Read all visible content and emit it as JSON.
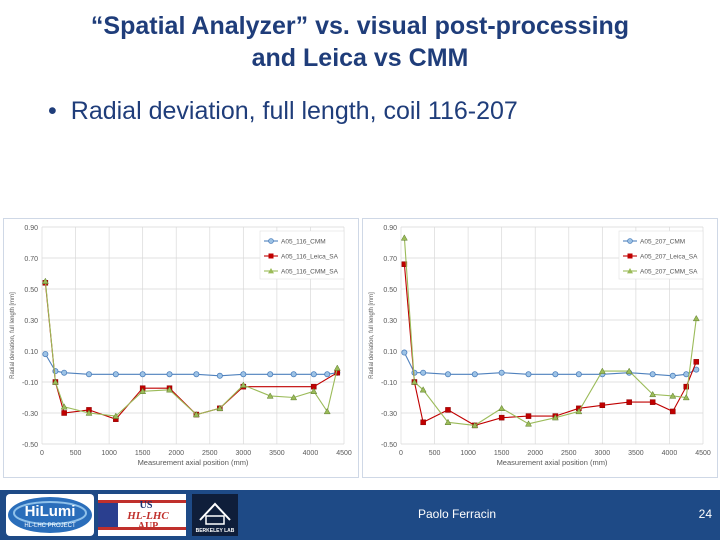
{
  "slide": {
    "title_line1": "“Spatial Analyzer” vs. visual post-processing",
    "title_line2": "and Leica vs CMM",
    "bullet": "Radial deviation, full length, coil 116-207",
    "presenter": "Paolo Ferracin",
    "page_number": "24"
  },
  "logos": {
    "hilumi_main": "HiLumi",
    "hilumi_sub": "HL-LHC PROJECT",
    "us_line1": "US",
    "us_line2": "HL-LHC",
    "us_line3": "AUP",
    "berkeley": "BERKELEY LAB"
  },
  "colors": {
    "cmm": "#4f81bd",
    "leica": "#c00000",
    "cmm_sa": "#9bbb59",
    "theme": "#1e4a86"
  },
  "chart_data": [
    {
      "type": "line",
      "xlabel": "Measurement axial position (mm)",
      "ylabel": "Radial deviation, full length [mm]",
      "ylim": [
        -0.5,
        0.9
      ],
      "xlim": [
        0,
        4500
      ],
      "yticks": [
        "0.90",
        "0.70",
        "0.50",
        "0.30",
        "0.10",
        "-0.10",
        "-0.30",
        "-0.50"
      ],
      "xticks": [
        "0",
        "500",
        "1000",
        "1500",
        "2000",
        "2500",
        "3000",
        "3500",
        "4000",
        "4500"
      ],
      "legend_position": "top-right",
      "series": [
        {
          "name": "A05_116_CMM",
          "color": "#4f81bd",
          "marker": "circle",
          "x": [
            50,
            200,
            330,
            700,
            1100,
            1500,
            1900,
            2300,
            2650,
            3000,
            3400,
            3750,
            4050,
            4250,
            4400
          ],
          "y": [
            0.08,
            -0.03,
            -0.04,
            -0.05,
            -0.05,
            -0.05,
            -0.05,
            -0.05,
            -0.06,
            -0.05,
            -0.05,
            -0.05,
            -0.05,
            -0.05,
            -0.04
          ]
        },
        {
          "name": "A05_116_Leica_SA",
          "color": "#c00000",
          "marker": "square",
          "x": [
            50,
            200,
            330,
            700,
            1100,
            1500,
            1900,
            2300,
            2650,
            3000,
            4050,
            4400
          ],
          "y": [
            0.54,
            -0.1,
            -0.3,
            -0.28,
            -0.34,
            -0.14,
            -0.14,
            -0.31,
            -0.27,
            -0.13,
            -0.13,
            -0.04
          ]
        },
        {
          "name": "A05_116_CMM_SA",
          "color": "#9bbb59",
          "marker": "triangle",
          "x": [
            50,
            200,
            330,
            700,
            1100,
            1500,
            1900,
            2300,
            2650,
            3000,
            3400,
            3750,
            4050,
            4250,
            4400
          ],
          "y": [
            0.55,
            -0.1,
            -0.26,
            -0.3,
            -0.32,
            -0.16,
            -0.15,
            -0.31,
            -0.27,
            -0.12,
            -0.19,
            -0.2,
            -0.16,
            -0.29,
            -0.01
          ]
        }
      ]
    },
    {
      "type": "line",
      "xlabel": "Measurement axial position (mm)",
      "ylabel": "Radial deviation, full length [mm]",
      "ylim": [
        -0.5,
        0.9
      ],
      "xlim": [
        0,
        4500
      ],
      "yticks": [
        "0.90",
        "0.70",
        "0.50",
        "0.30",
        "0.10",
        "-0.10",
        "-0.30",
        "-0.50"
      ],
      "xticks": [
        "0",
        "500",
        "1000",
        "1500",
        "2000",
        "2500",
        "3000",
        "3500",
        "4000",
        "4500"
      ],
      "legend_position": "top-right",
      "series": [
        {
          "name": "A05_207_CMM",
          "color": "#4f81bd",
          "marker": "circle",
          "x": [
            50,
            200,
            330,
            700,
            1100,
            1500,
            1900,
            2300,
            2650,
            3000,
            3400,
            3750,
            4050,
            4250,
            4400
          ],
          "y": [
            0.09,
            -0.04,
            -0.04,
            -0.05,
            -0.05,
            -0.04,
            -0.05,
            -0.05,
            -0.05,
            -0.05,
            -0.04,
            -0.05,
            -0.06,
            -0.05,
            -0.02
          ]
        },
        {
          "name": "A05_207_Leica_SA",
          "color": "#c00000",
          "marker": "square",
          "x": [
            50,
            200,
            330,
            700,
            1100,
            1500,
            1900,
            2300,
            2650,
            3000,
            3400,
            3750,
            4050,
            4250,
            4400
          ],
          "y": [
            0.66,
            -0.1,
            -0.36,
            -0.28,
            -0.38,
            -0.33,
            -0.32,
            -0.32,
            -0.27,
            -0.25,
            -0.23,
            -0.23,
            -0.29,
            -0.13,
            0.03
          ]
        },
        {
          "name": "A05_207_CMM_SA",
          "color": "#9bbb59",
          "marker": "triangle",
          "x": [
            50,
            200,
            330,
            700,
            1100,
            1500,
            1900,
            2300,
            2650,
            3000,
            3400,
            3750,
            4050,
            4250,
            4400
          ],
          "y": [
            0.83,
            -0.1,
            -0.15,
            -0.36,
            -0.38,
            -0.27,
            -0.37,
            -0.33,
            -0.29,
            -0.03,
            -0.03,
            -0.18,
            -0.19,
            -0.2,
            0.31
          ]
        }
      ]
    }
  ]
}
